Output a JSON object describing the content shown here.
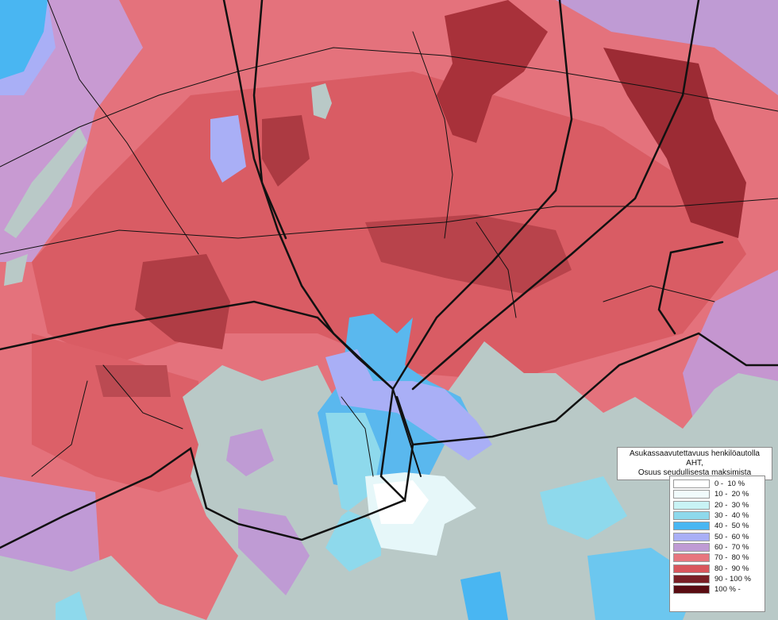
{
  "legend": {
    "title_line1": "Asukassaavutettavuus henkilöautolla AHT,",
    "title_line2": "Osuus seudullisesta maksimista",
    "classes": [
      {
        "label": "0 -  10 %",
        "color": "#ffffff"
      },
      {
        "label": "10 -  20 %",
        "color": "#f1fbfc"
      },
      {
        "label": "20 -  30 %",
        "color": "#c9f3f5"
      },
      {
        "label": "30 -  40 %",
        "color": "#8ed9ec"
      },
      {
        "label": "40 -  50 %",
        "color": "#49b6f2"
      },
      {
        "label": "50 -  60 %",
        "color": "#a9aff6"
      },
      {
        "label": "60 -  70 %",
        "color": "#bf9bd4"
      },
      {
        "label": "70 -  80 %",
        "color": "#e7767e"
      },
      {
        "label": "80 -  90 %",
        "color": "#d9565c"
      },
      {
        "label": "90 - 100 %",
        "color": "#7a1f25"
      },
      {
        "label": "100 % -",
        "color": "#5a0c12"
      }
    ]
  },
  "map_colors": {
    "sea": "#b9c9c7",
    "road": "#111111"
  }
}
